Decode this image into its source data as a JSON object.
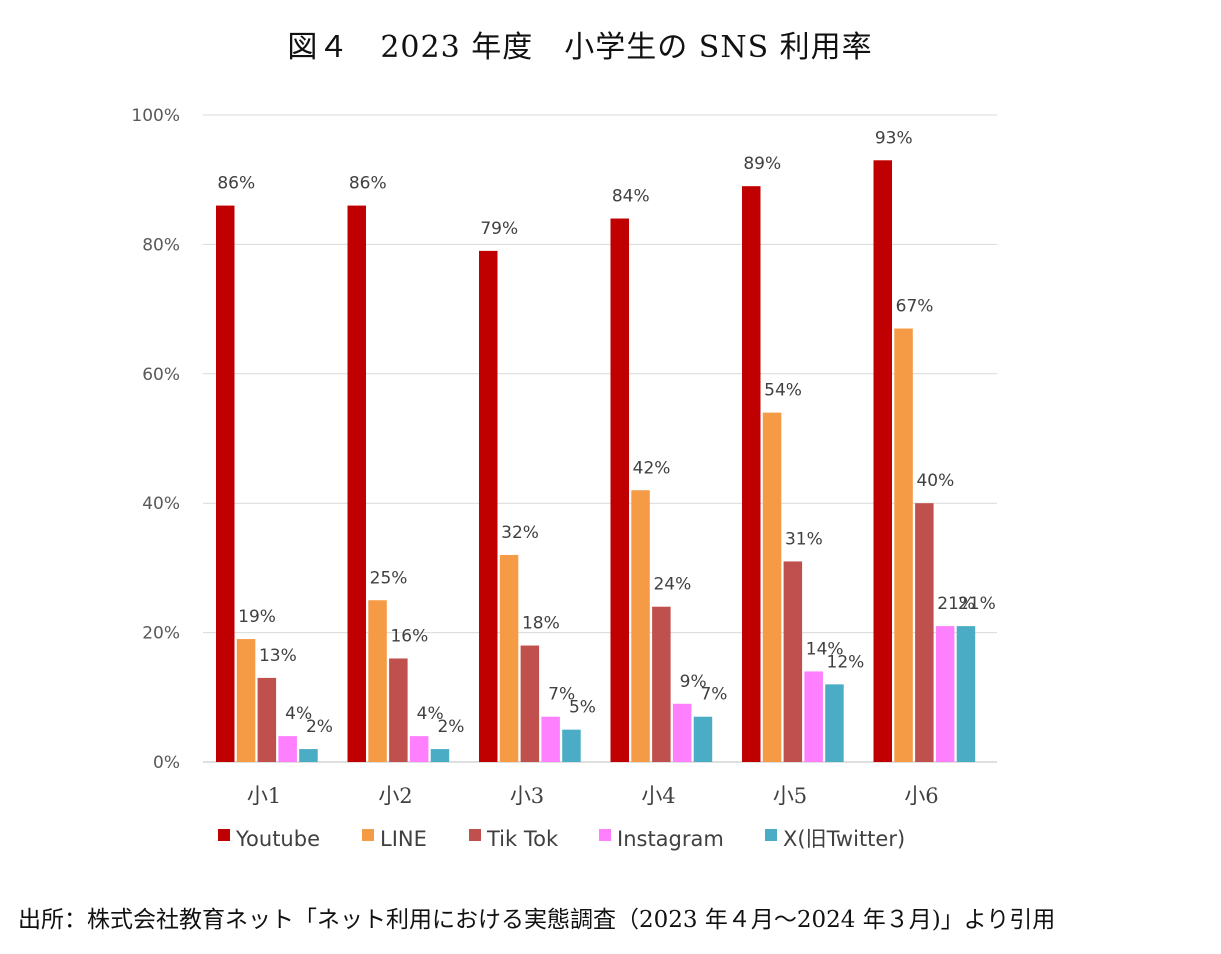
{
  "figure": {
    "title": "図４　2023 年度　小学生の SNS 利用率",
    "source": "出所：株式会社教育ネット「ネット利用における実態調査（2023 年４月〜2024 年３月)」より引用"
  },
  "chart_data": {
    "type": "bar",
    "title": "図４　2023 年度　小学生の SNS 利用率",
    "xlabel": "",
    "ylabel": "",
    "categories": [
      "小1",
      "小2",
      "小3",
      "小4",
      "小5",
      "小6"
    ],
    "ylim": [
      0,
      100
    ],
    "yticks": [
      "0%",
      "20%",
      "40%",
      "60%",
      "80%",
      "100%"
    ],
    "grid": true,
    "legend_position": "bottom",
    "series": [
      {
        "name": "Youtube",
        "color": "#c00000",
        "values": [
          86,
          86,
          79,
          84,
          89,
          93
        ],
        "labels": [
          "86%",
          "86%",
          "79%",
          "84%",
          "89%",
          "93%"
        ]
      },
      {
        "name": "LINE",
        "color": "#f59a45",
        "values": [
          19,
          25,
          32,
          42,
          54,
          67
        ],
        "labels": [
          "19%",
          "25%",
          "32%",
          "42%",
          "54%",
          "67%"
        ]
      },
      {
        "name": "Tik Tok",
        "color": "#c0504d",
        "values": [
          13,
          16,
          18,
          24,
          31,
          40
        ],
        "labels": [
          "13%",
          "16%",
          "18%",
          "24%",
          "31%",
          "40%"
        ]
      },
      {
        "name": "Instagram",
        "color": "#ff80ff",
        "values": [
          4,
          4,
          7,
          9,
          14,
          21
        ],
        "labels": [
          "4%",
          "4%",
          "7%",
          "9%",
          "14%",
          "21%"
        ]
      },
      {
        "name": "X(旧Twitter)",
        "color": "#4bacc6",
        "values": [
          2,
          2,
          5,
          7,
          12,
          21
        ],
        "labels": [
          "2%",
          "2%",
          "5%",
          "7%",
          "12%",
          "21%"
        ]
      }
    ]
  }
}
